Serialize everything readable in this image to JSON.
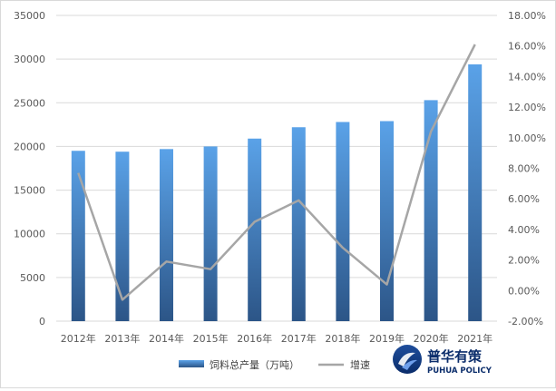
{
  "chart_data": {
    "type": "bar+line",
    "categories": [
      "2012年",
      "2013年",
      "2014年",
      "2015年",
      "2016年",
      "2017年",
      "2018年",
      "2019年",
      "2020年",
      "2021年"
    ],
    "series": [
      {
        "name": "饲料总产量（万吨）",
        "type": "bar",
        "axis": "left",
        "color": "#4a90d9",
        "values": [
          19500,
          19400,
          19700,
          20000,
          20900,
          22200,
          22800,
          22900,
          25300,
          29400
        ]
      },
      {
        "name": "增速",
        "type": "line",
        "axis": "right",
        "color": "#a6a6a6",
        "values": [
          7.7,
          -0.6,
          1.9,
          1.4,
          4.5,
          5.9,
          2.8,
          0.4,
          10.4,
          16.1
        ]
      }
    ],
    "left_axis": {
      "min": 0,
      "max": 35000,
      "step": 5000,
      "tick_labels": [
        "0",
        "5000",
        "10000",
        "15000",
        "20000",
        "25000",
        "30000",
        "35000"
      ]
    },
    "right_axis": {
      "min": -2,
      "max": 18,
      "step": 2,
      "tick_labels": [
        "-2.00%",
        "0.00%",
        "2.00%",
        "4.00%",
        "6.00%",
        "8.00%",
        "10.00%",
        "12.00%",
        "14.00%",
        "16.00%",
        "18.00%"
      ]
    },
    "grid": true,
    "legend_position": "bottom"
  },
  "logo": {
    "name_cn": "普华有策",
    "name_en": "PUHUA POLICY"
  }
}
